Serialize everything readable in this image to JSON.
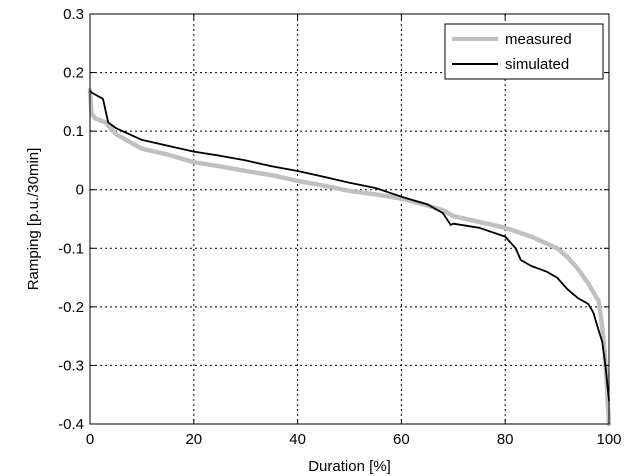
{
  "chart_data": {
    "type": "line",
    "xlabel": "Duration [%]",
    "ylabel": "Ramping [p.u./30min]",
    "xlim": [
      0,
      100
    ],
    "ylim": [
      -0.4,
      0.3
    ],
    "x_ticks": [
      0,
      20,
      40,
      60,
      80,
      100
    ],
    "y_ticks": [
      -0.4,
      -0.3,
      -0.2,
      -0.1,
      0,
      0.1,
      0.2,
      0.3
    ],
    "x_tick_labels": [
      "0",
      "20",
      "40",
      "60",
      "80",
      "100"
    ],
    "y_tick_labels": [
      "-0.4",
      "-0.3",
      "-0.2",
      "-0.1",
      "0",
      "0.1",
      "0.2",
      "0.3"
    ],
    "grid": true,
    "legend_position": "top-right",
    "series": [
      {
        "name": "measured",
        "color": "#c0c0c0",
        "x": [
          0,
          0.3,
          1,
          3,
          5,
          8,
          10,
          15,
          20,
          25,
          30,
          35,
          40,
          45,
          50,
          55,
          60,
          65,
          68,
          70,
          75,
          80,
          85,
          88,
          90,
          92,
          94,
          96,
          97,
          98,
          98.5,
          99,
          99.5,
          100
        ],
        "y": [
          0.17,
          0.13,
          0.122,
          0.115,
          0.095,
          0.08,
          0.07,
          0.06,
          0.047,
          0.04,
          0.032,
          0.025,
          0.015,
          0.007,
          -0.002,
          -0.008,
          -0.015,
          -0.027,
          -0.035,
          -0.045,
          -0.055,
          -0.065,
          -0.08,
          -0.092,
          -0.1,
          -0.115,
          -0.135,
          -0.16,
          -0.175,
          -0.19,
          -0.22,
          -0.26,
          -0.32,
          -0.4
        ]
      },
      {
        "name": "simulated",
        "color": "#000000",
        "x": [
          0,
          0.5,
          1.5,
          2.5,
          3.5,
          5,
          8,
          10,
          15,
          20,
          25,
          30,
          35,
          40,
          45,
          50,
          55,
          60,
          65,
          68,
          69.5,
          70,
          75,
          80,
          82,
          83,
          85,
          88,
          90,
          92,
          94,
          96,
          97,
          98,
          98.7,
          99.3,
          100
        ],
        "y": [
          0.168,
          0.165,
          0.16,
          0.155,
          0.115,
          0.105,
          0.093,
          0.085,
          0.075,
          0.065,
          0.058,
          0.05,
          0.04,
          0.032,
          0.022,
          0.012,
          0.003,
          -0.012,
          -0.025,
          -0.04,
          -0.06,
          -0.058,
          -0.065,
          -0.08,
          -0.1,
          -0.12,
          -0.13,
          -0.14,
          -0.15,
          -0.17,
          -0.185,
          -0.195,
          -0.21,
          -0.24,
          -0.26,
          -0.3,
          -0.36
        ]
      }
    ]
  }
}
